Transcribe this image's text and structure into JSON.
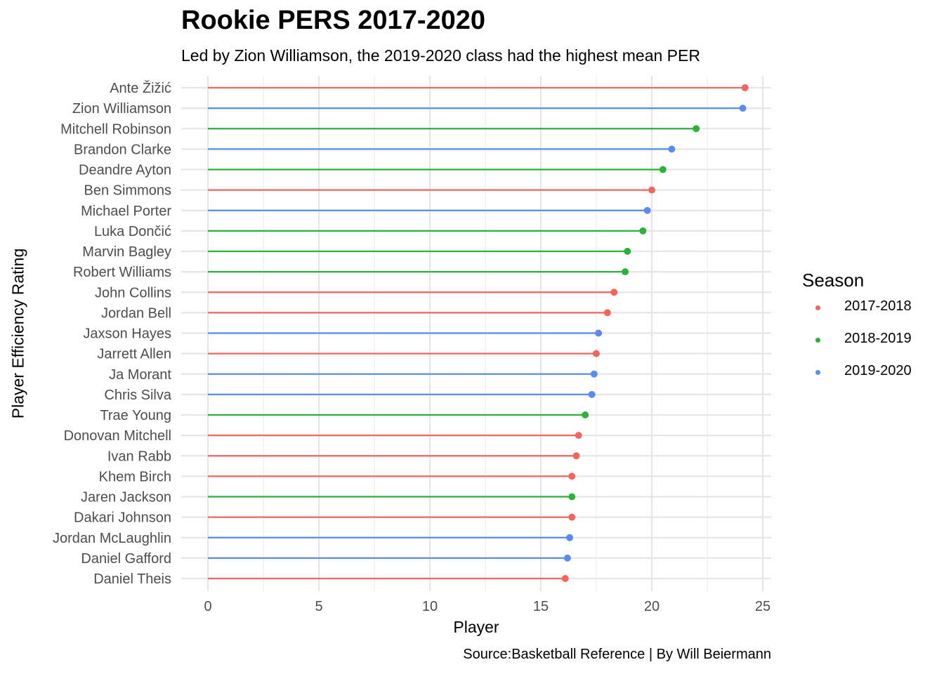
{
  "chart_data": {
    "type": "lollipop",
    "title": "Rookie PERS 2017-2020",
    "subtitle": "Led by Zion Williamson, the 2019-2020 class had the highest mean PER",
    "caption": "Source:Basketball Reference | By Will Beiermann",
    "xlabel": "Player",
    "ylabel": "Player Efficiency Rating",
    "xlim": [
      0,
      25
    ],
    "x_ticks": [
      0,
      5,
      10,
      15,
      20,
      25
    ],
    "grid": true,
    "legend": {
      "title": "Season",
      "placement": "right",
      "entries": [
        "2017-2018",
        "2018-2019",
        "2019-2020"
      ]
    },
    "series_colors": {
      "2017-2018": "#F2665E",
      "2018-2019": "#2CB23B",
      "2019-2020": "#5C8BF0"
    },
    "points": [
      {
        "player": "Ante Žižić",
        "per": 24.2,
        "season": "2017-2018"
      },
      {
        "player": "Zion Williamson",
        "per": 24.1,
        "season": "2019-2020"
      },
      {
        "player": "Mitchell Robinson",
        "per": 22.0,
        "season": "2018-2019"
      },
      {
        "player": "Brandon Clarke",
        "per": 20.9,
        "season": "2019-2020"
      },
      {
        "player": "Deandre Ayton",
        "per": 20.5,
        "season": "2018-2019"
      },
      {
        "player": "Ben Simmons",
        "per": 20.0,
        "season": "2017-2018"
      },
      {
        "player": "Michael Porter",
        "per": 19.8,
        "season": "2019-2020"
      },
      {
        "player": "Luka Dončić",
        "per": 19.6,
        "season": "2018-2019"
      },
      {
        "player": "Marvin Bagley",
        "per": 18.9,
        "season": "2018-2019"
      },
      {
        "player": "Robert Williams",
        "per": 18.8,
        "season": "2018-2019"
      },
      {
        "player": "John Collins",
        "per": 18.3,
        "season": "2017-2018"
      },
      {
        "player": "Jordan Bell",
        "per": 18.0,
        "season": "2017-2018"
      },
      {
        "player": "Jaxson Hayes",
        "per": 17.6,
        "season": "2019-2020"
      },
      {
        "player": "Jarrett Allen",
        "per": 17.5,
        "season": "2017-2018"
      },
      {
        "player": "Ja Morant",
        "per": 17.4,
        "season": "2019-2020"
      },
      {
        "player": "Chris Silva",
        "per": 17.3,
        "season": "2019-2020"
      },
      {
        "player": "Trae Young",
        "per": 17.0,
        "season": "2018-2019"
      },
      {
        "player": "Donovan Mitchell",
        "per": 16.7,
        "season": "2017-2018"
      },
      {
        "player": "Ivan Rabb",
        "per": 16.6,
        "season": "2017-2018"
      },
      {
        "player": "Khem Birch",
        "per": 16.4,
        "season": "2017-2018"
      },
      {
        "player": "Jaren Jackson",
        "per": 16.4,
        "season": "2018-2019"
      },
      {
        "player": "Dakari Johnson",
        "per": 16.4,
        "season": "2017-2018"
      },
      {
        "player": "Jordan McLaughlin",
        "per": 16.3,
        "season": "2019-2020"
      },
      {
        "player": "Daniel Gafford",
        "per": 16.2,
        "season": "2019-2020"
      },
      {
        "player": "Daniel Theis",
        "per": 16.1,
        "season": "2017-2018"
      }
    ]
  }
}
